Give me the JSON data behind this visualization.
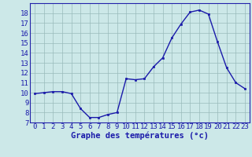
{
  "x": [
    0,
    1,
    2,
    3,
    4,
    5,
    6,
    7,
    8,
    9,
    10,
    11,
    12,
    13,
    14,
    15,
    16,
    17,
    18,
    19,
    20,
    21,
    22,
    23
  ],
  "y": [
    9.9,
    10.0,
    10.1,
    10.1,
    9.9,
    8.4,
    7.5,
    7.5,
    7.8,
    8.0,
    11.4,
    11.3,
    11.4,
    12.6,
    13.5,
    15.5,
    16.9,
    18.1,
    18.3,
    17.9,
    15.1,
    12.5,
    11.0,
    10.4
  ],
  "line_color": "#1a1aaa",
  "marker": "s",
  "markersize": 2.0,
  "linewidth": 1.0,
  "xlabel": "Graphe des températures (°c)",
  "xlabel_fontsize": 7.5,
  "ylim": [
    7,
    19
  ],
  "xlim_min": -0.5,
  "xlim_max": 23.5,
  "yticks": [
    7,
    8,
    9,
    10,
    11,
    12,
    13,
    14,
    15,
    16,
    17,
    18
  ],
  "xticks": [
    0,
    1,
    2,
    3,
    4,
    5,
    6,
    7,
    8,
    9,
    10,
    11,
    12,
    13,
    14,
    15,
    16,
    17,
    18,
    19,
    20,
    21,
    22,
    23
  ],
  "bg_color": "#cce8e8",
  "grid_color": "#99bbbb",
  "tick_fontsize": 6.5,
  "axis_color": "#2222aa",
  "label_color": "#1a1aaa"
}
